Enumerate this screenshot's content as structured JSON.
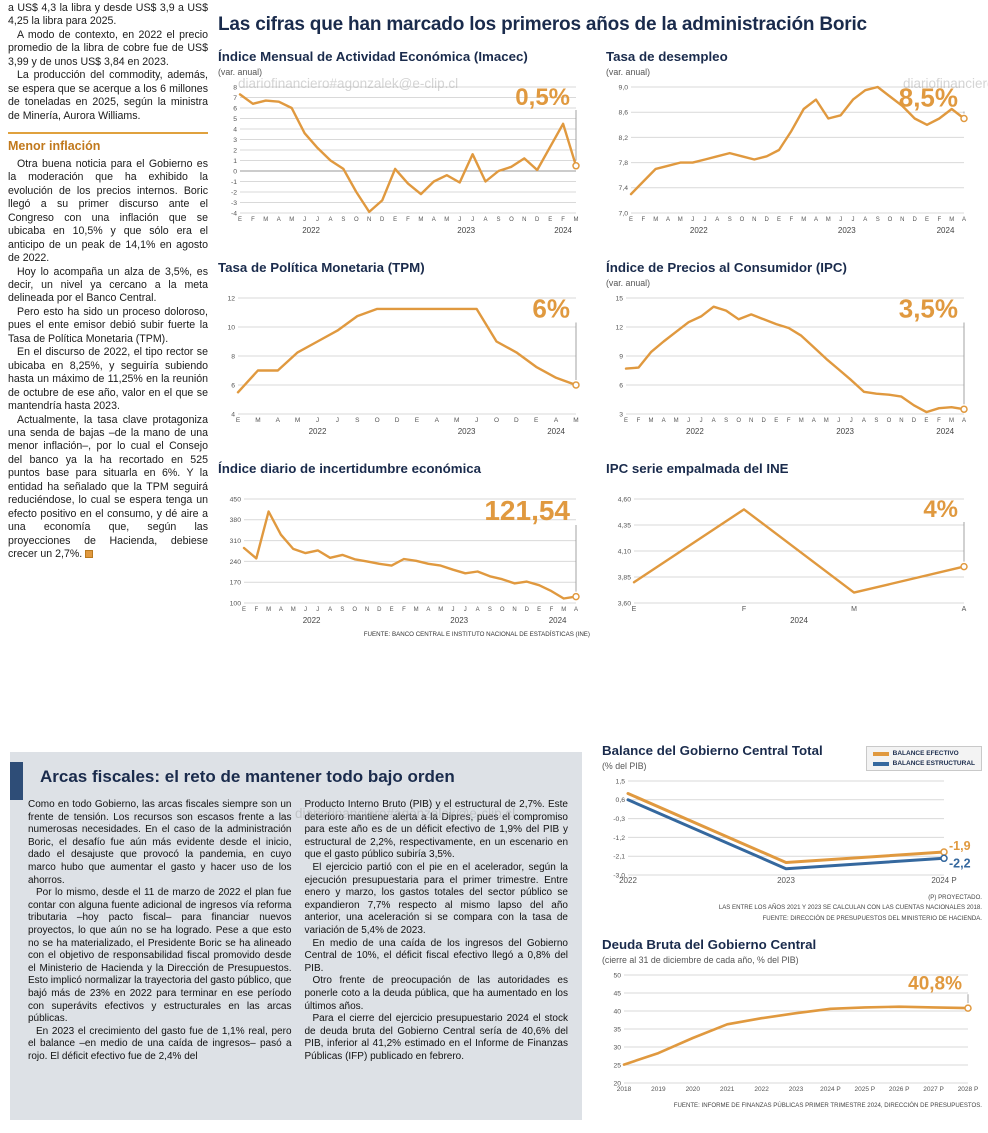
{
  "watermark": "diariofinanciero#agonzalek@e-clip.cl",
  "main_title": "Las cifras que han marcado los primeros años de la administración Boric",
  "colors": {
    "accent_orange": "#E0993F",
    "accent_blue": "#35689E",
    "navy": "#1A2B4C",
    "panel_gray": "#DDE1E6"
  },
  "article": {
    "paras": [
      "a US$ 4,3 la libra y desde US$ 3,9 a US$ 4,25 la libra para 2025.",
      "A modo de contexto, en 2022 el precio promedio de la libra de cobre fue de US$ 3,99 y de unos US$ 3,84 en 2023.",
      "La producción del commodity, además, se espera que se acerque a los 6 millones de toneladas en 2025, según la ministra de Minería, Aurora Williams."
    ],
    "heading": "Menor inflación",
    "body_paras": [
      "Otra buena noticia para el Gobierno es la moderación que ha exhibido la evolución de los precios internos. Boric llegó a su primer discurso ante el Congreso con una inflación que se ubicaba en 10,5% y que sólo era el anticipo de un peak de 14,1% en agosto de 2022.",
      "Hoy lo acompaña un alza de 3,5%, es decir, un nivel ya cercano a la meta delineada por el Banco Central.",
      "Pero esto ha sido un proceso doloroso, pues el ente emisor debió subir fuerte la Tasa de Política Monetaria (TPM).",
      "En el discurso de 2022, el tipo rector se ubicaba en 8,25%, y seguiría subiendo hasta un máximo de 11,25% en la reunión de octubre de ese año, valor en el que se mantendría hasta 2023.",
      "Actualmente, la tasa clave protagoniza una senda de bajas –de la mano de una menor inflación–, por lo cual el Consejo del banco ya la ha recortado en 525 puntos base para situarla en 6%. Y la entidad ha señalado que la TPM seguirá reduciéndose, lo cual se espera tenga un efecto positivo en el consumo, y dé aire a una economía que, según las proyecciones de Hacienda, debiese crecer un 2,7%."
    ]
  },
  "fiscal": {
    "title": "Arcas fiscales: el reto de mantener todo bajo orden",
    "col1_paras": [
      "Como en todo Gobierno, las arcas fiscales siempre son un frente de tensión. Los recursos son escasos frente a las numerosas necesidades. En el caso de la administración Boric, el desafío fue aún más evidente desde el inicio, dado el desajuste que provocó la pandemia, en cuyo marco hubo que aumentar el gasto y hacer uso de los ahorros.",
      "Por lo mismo, desde el 11 de marzo de 2022 el plan fue contar con alguna fuente adicional de ingresos vía reforma tributaria –hoy pacto fiscal– para financiar nuevos proyectos, lo que aún no se ha logrado. Pese a que esto no se ha materializado, el Presidente Boric se ha alineado con el objetivo de responsabilidad fiscal promovido desde el Ministerio de Hacienda y la Dirección de Presupuestos. Esto implicó normalizar la trayectoria del gasto público, que bajó más de 23% en 2022 para terminar en ese período con superávits efectivos y estructurales en las arcas públicas.",
      "En 2023 el crecimiento del gasto fue de 1,1% real, pero el balance –en medio de una caída de ingresos– pasó a rojo. El déficit efectivo fue de 2,4% del"
    ],
    "col2_paras": [
      "Producto Interno Bruto (PIB) y el estructural de 2,7%. Este deterioro mantiene alerta a la Dipres, pues el compromiso para este año es de un déficit efectivo de 1,9% del PIB y estructural de 2,2%, respectivamente, en un escenario en que el gasto público subiría 3,5%.",
      "El ejercicio partió con el pie en el acelerador, según la ejecución presupuestaria para el primer trimestre. Entre enero y marzo, los gastos totales del sector público se expandieron 7,7% respecto al mismo lapso del año anterior, una aceleración si se compara con la tasa de variación de 5,4% de 2023.",
      "En medio de una caída de los ingresos del Gobierno Central de 10%, el déficit fiscal efectivo llegó a 0,8% del PIB.",
      "Otro frente de preocupación de las autoridades es ponerle coto a la deuda pública, que ha aumentado en los últimos años.",
      "Para el cierre del ejercicio presupuestario 2024 el stock de deuda bruta del Gobierno Central sería de 40,6% del PIB, inferior al 41,2% estimado en el Informe de Finanzas Públicas (IFP) publicado en febrero."
    ]
  },
  "notes": {
    "top_source": "FUENTE: BANCO CENTRAL E INSTITUTO NACIONAL DE ESTADÍSTICAS (INE)",
    "balance": [
      "(P) PROYECTADO.",
      "LAS ENTRE LOS AÑOS 2021 Y 2023 SE CALCULAN CON LAS CUENTAS NACIONALES 2018.",
      "FUENTE: DIRECCIÓN DE PRESUPUESTOS DEL MINISTERIO DE HACIENDA."
    ],
    "deuda": "FUENTE: INFORME DE FINANZAS PÚBLICAS PRIMER TRIMESTRE 2024, DIRECCIÓN DE PRESUPUESTOS."
  },
  "chart_data": [
    {
      "type": "line",
      "title": "Índice Mensual de Actividad Económica (Imacec)",
      "subtitle": "(var. anual)",
      "highlight": "0,5%",
      "highlight_size": 24,
      "ml": 22,
      "x_font": 6,
      "ylim": [
        -4,
        8
      ],
      "y_ticks": [
        8,
        7,
        6,
        5,
        4,
        3,
        2,
        1,
        0,
        -1,
        -2,
        -3,
        -4
      ],
      "y_tick_labels": [
        "8",
        "7",
        "6",
        "5",
        "4",
        "3",
        "2",
        "1",
        "0",
        "-1",
        "-2",
        "-3",
        "-4"
      ],
      "x_labels": [
        "E",
        "F",
        "M",
        "A",
        "M",
        "J",
        "J",
        "A",
        "S",
        "O",
        "N",
        "D",
        "E",
        "F",
        "M",
        "A",
        "M",
        "J",
        "J",
        "A",
        "S",
        "O",
        "N",
        "D",
        "E",
        "F",
        "M"
      ],
      "years": [
        {
          "label": "2022",
          "start": 0,
          "end": 11
        },
        {
          "label": "2023",
          "start": 12,
          "end": 23
        },
        {
          "label": "2024",
          "start": 24,
          "end": 26
        }
      ],
      "series": [
        {
          "name": "Imacec",
          "color": "#E0993F",
          "values": [
            7.3,
            6.4,
            6.7,
            6.6,
            6.0,
            3.6,
            2.2,
            1.0,
            0.2,
            -2.0,
            -3.9,
            -2.8,
            0.2,
            -1.2,
            -2.2,
            -1.0,
            -0.4,
            -1.1,
            1.6,
            -1.0,
            0.0,
            0.4,
            1.2,
            0.1,
            2.3,
            4.5,
            0.5
          ]
        }
      ]
    },
    {
      "type": "line",
      "title": "Tasa de desempleo",
      "subtitle": "(var. anual)",
      "highlight": "8,5%",
      "highlight_size": 26,
      "ml": 25,
      "x_font": 6,
      "ylim": [
        7.0,
        9.0
      ],
      "y_ticks": [
        9.0,
        8.6,
        8.2,
        7.8,
        7.4,
        7.0
      ],
      "y_tick_labels": [
        "9,0",
        "8,6",
        "8,2",
        "7,8",
        "7,4",
        "7,0"
      ],
      "x_labels": [
        "E",
        "F",
        "M",
        "A",
        "M",
        "J",
        "J",
        "A",
        "S",
        "O",
        "N",
        "D",
        "E",
        "F",
        "M",
        "A",
        "M",
        "J",
        "J",
        "A",
        "S",
        "O",
        "N",
        "D",
        "E",
        "F",
        "M",
        "A"
      ],
      "years": [
        {
          "label": "2022",
          "start": 0,
          "end": 11
        },
        {
          "label": "2023",
          "start": 12,
          "end": 23
        },
        {
          "label": "2024",
          "start": 24,
          "end": 27
        }
      ],
      "series": [
        {
          "name": "Tasa de desempleo",
          "color": "#E0993F",
          "values": [
            7.3,
            7.5,
            7.7,
            7.75,
            7.8,
            7.8,
            7.85,
            7.9,
            7.95,
            7.9,
            7.85,
            7.9,
            8.0,
            8.3,
            8.65,
            8.8,
            8.5,
            8.55,
            8.8,
            8.95,
            9.0,
            8.85,
            8.7,
            8.5,
            8.4,
            8.5,
            8.65,
            8.5
          ]
        }
      ]
    },
    {
      "type": "line",
      "title": "Tasa de Política Monetaria (TPM)",
      "highlight": "6%",
      "highlight_size": 26,
      "ml": 20,
      "x_font": 6.5,
      "ylim": [
        4,
        12
      ],
      "y_ticks": [
        12,
        10,
        8,
        6,
        4
      ],
      "y_tick_labels": [
        "12",
        "10",
        "8",
        "6",
        "4"
      ],
      "x_labels": [
        "E",
        "M",
        "A",
        "M",
        "J",
        "J",
        "S",
        "O",
        "D",
        "E",
        "A",
        "M",
        "J",
        "O",
        "D",
        "E",
        "A",
        "M"
      ],
      "years": [
        {
          "label": "2022",
          "start": 0,
          "end": 8
        },
        {
          "label": "2023",
          "start": 9,
          "end": 14
        },
        {
          "label": "2024",
          "start": 15,
          "end": 17
        }
      ],
      "series": [
        {
          "name": "TPM",
          "color": "#E0993F",
          "values": [
            5.5,
            7.0,
            7.0,
            8.25,
            9.0,
            9.75,
            10.75,
            11.25,
            11.25,
            11.25,
            11.25,
            11.25,
            11.25,
            9.0,
            8.25,
            7.25,
            6.5,
            6.0
          ]
        }
      ]
    },
    {
      "type": "line",
      "title": "Índice de Precios al Consumidor (IPC)",
      "subtitle": "(var. anual)",
      "highlight": "3,5%",
      "highlight_size": 26,
      "ml": 20,
      "x_font": 6,
      "ylim": [
        3,
        15
      ],
      "y_ticks": [
        15,
        12,
        9,
        6,
        3
      ],
      "y_tick_labels": [
        "15",
        "12",
        "9",
        "6",
        "3"
      ],
      "x_labels": [
        "E",
        "F",
        "M",
        "A",
        "M",
        "J",
        "J",
        "A",
        "S",
        "O",
        "N",
        "D",
        "E",
        "F",
        "M",
        "A",
        "M",
        "J",
        "J",
        "A",
        "S",
        "O",
        "N",
        "D",
        "E",
        "F",
        "M",
        "A"
      ],
      "years": [
        {
          "label": "2022",
          "start": 0,
          "end": 11
        },
        {
          "label": "2023",
          "start": 12,
          "end": 23
        },
        {
          "label": "2024",
          "start": 24,
          "end": 27
        }
      ],
      "series": [
        {
          "name": "IPC",
          "color": "#E0993F",
          "values": [
            7.7,
            7.8,
            9.4,
            10.5,
            11.5,
            12.5,
            13.1,
            14.1,
            13.7,
            12.8,
            13.3,
            12.8,
            12.3,
            11.9,
            11.1,
            9.9,
            8.7,
            7.6,
            6.5,
            5.3,
            5.1,
            5.0,
            4.8,
            3.9,
            3.2,
            3.6,
            3.7,
            3.5
          ]
        }
      ]
    },
    {
      "type": "line",
      "title": "Índice diario de incertidumbre económica",
      "highlight": "121,54",
      "highlight_size": 28,
      "ml": 26,
      "x_font": 6,
      "ylim": [
        100,
        450
      ],
      "y_ticks": [
        450,
        380,
        310,
        240,
        170,
        100
      ],
      "y_tick_labels": [
        "450",
        "380",
        "310",
        "240",
        "170",
        "100"
      ],
      "x_labels": [
        "E",
        "F",
        "M",
        "A",
        "M",
        "J",
        "J",
        "A",
        "S",
        "O",
        "N",
        "D",
        "E",
        "F",
        "M",
        "A",
        "M",
        "J",
        "J",
        "A",
        "S",
        "O",
        "N",
        "D",
        "E",
        "F",
        "M",
        "A"
      ],
      "years": [
        {
          "label": "2022",
          "start": 0,
          "end": 11
        },
        {
          "label": "2023",
          "start": 12,
          "end": 23
        },
        {
          "label": "2024",
          "start": 24,
          "end": 27
        }
      ],
      "series": [
        {
          "name": "Incertidumbre económica",
          "color": "#E0993F",
          "values": [
            285,
            250,
            408,
            330,
            282,
            268,
            277,
            252,
            262,
            247,
            240,
            232,
            226,
            248,
            242,
            232,
            226,
            212,
            200,
            206,
            190,
            180,
            166,
            172,
            160,
            140,
            115,
            121.54
          ]
        }
      ]
    },
    {
      "type": "line",
      "title": "IPC serie empalmada del INE",
      "highlight": "4%",
      "highlight_size": 24,
      "ml": 28,
      "x_font": 7,
      "ylim": [
        3.6,
        4.6
      ],
      "y_ticks": [
        4.6,
        4.35,
        4.1,
        3.85,
        3.6
      ],
      "y_tick_labels": [
        "4,60",
        "4,35",
        "4,10",
        "3,85",
        "3,60"
      ],
      "x_labels": [
        "E",
        "F",
        "M",
        "A"
      ],
      "years": [
        {
          "label": "2024",
          "start": 0,
          "end": 3
        }
      ],
      "series": [
        {
          "name": "IPC serie empalmada",
          "color": "#E0993F",
          "values": [
            3.8,
            4.5,
            3.7,
            3.95
          ]
        }
      ]
    },
    {
      "type": "line",
      "title": "Balance del Gobierno Central Total",
      "subtitle": "(% del PIB)",
      "ml": 26,
      "mr": 38,
      "x_font": 8,
      "ylim": [
        -3.0,
        1.5
      ],
      "y_ticks": [
        1.5,
        0.6,
        -0.3,
        -1.2,
        -2.1,
        -3.0
      ],
      "y_tick_labels": [
        "1,5",
        "0,6",
        "-0,3",
        "-1,2",
        "-2,1",
        "-3,0"
      ],
      "x_labels": [
        "2022",
        "2023",
        "2024 P"
      ],
      "legend": [
        {
          "label": "BALANCE EFECTIVO",
          "color": "#E0993F"
        },
        {
          "label": "BALANCE ESTRUCTURAL",
          "color": "#35689E"
        }
      ],
      "series": [
        {
          "name": "Balance efectivo",
          "color": "#E0993F",
          "width": 3,
          "end_label": "-1,9",
          "label_dy": -2,
          "values": [
            0.9,
            -2.4,
            -1.9
          ]
        },
        {
          "name": "Balance estructural",
          "color": "#35689E",
          "width": 3,
          "end_label": "-2,2",
          "label_dy": 9,
          "values": [
            0.6,
            -2.7,
            -2.2
          ]
        }
      ]
    },
    {
      "type": "line",
      "title": "Deuda Bruta del Gobierno Central",
      "subtitle": "(cierre al 31 de diciembre de cada año, % del PIB)",
      "highlight": "40,8%",
      "highlight_size": 19,
      "ml": 22,
      "x_font": 6.5,
      "ylim": [
        20,
        50
      ],
      "y_ticks": [
        50,
        45,
        40,
        35,
        30,
        25,
        20
      ],
      "y_tick_labels": [
        "50",
        "45",
        "40",
        "35",
        "30",
        "25",
        "20"
      ],
      "x_labels": [
        "2018",
        "2019",
        "2020",
        "2021",
        "2022",
        "2023",
        "2024 P",
        "2025 P",
        "2026 P",
        "2027 P",
        "2028 P"
      ],
      "series": [
        {
          "name": "Deuda bruta",
          "color": "#E0993F",
          "width": 2.6,
          "values": [
            25.1,
            28.3,
            32.5,
            36.3,
            38.0,
            39.4,
            40.6,
            41.0,
            41.2,
            41.0,
            40.8
          ]
        }
      ]
    }
  ]
}
